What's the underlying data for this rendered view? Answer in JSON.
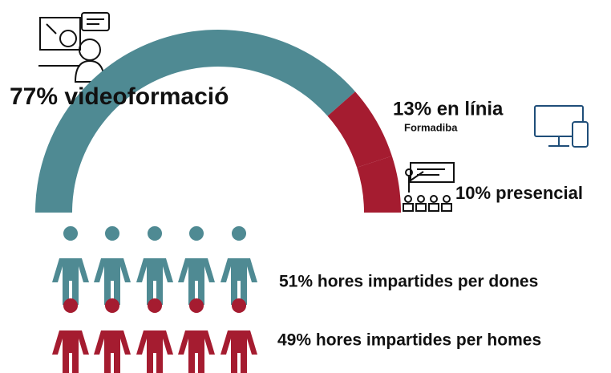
{
  "chart_data": [
    {
      "type": "pie",
      "half": true,
      "values": [
        77,
        13,
        10
      ],
      "value_labels": [
        "77% videoformació",
        "13% en línia",
        "10% presencial"
      ],
      "colors": [
        "#4f8a93",
        "#a51c30",
        "#a51c30"
      ],
      "annotation": "Formadiba"
    },
    {
      "type": "pictogram",
      "values": [
        51,
        49
      ],
      "value_labels": [
        "51% hores impartides per dones",
        "49% hores impartides per homes"
      ],
      "colors": [
        "#4f8a93",
        "#a51c30"
      ]
    }
  ]
}
